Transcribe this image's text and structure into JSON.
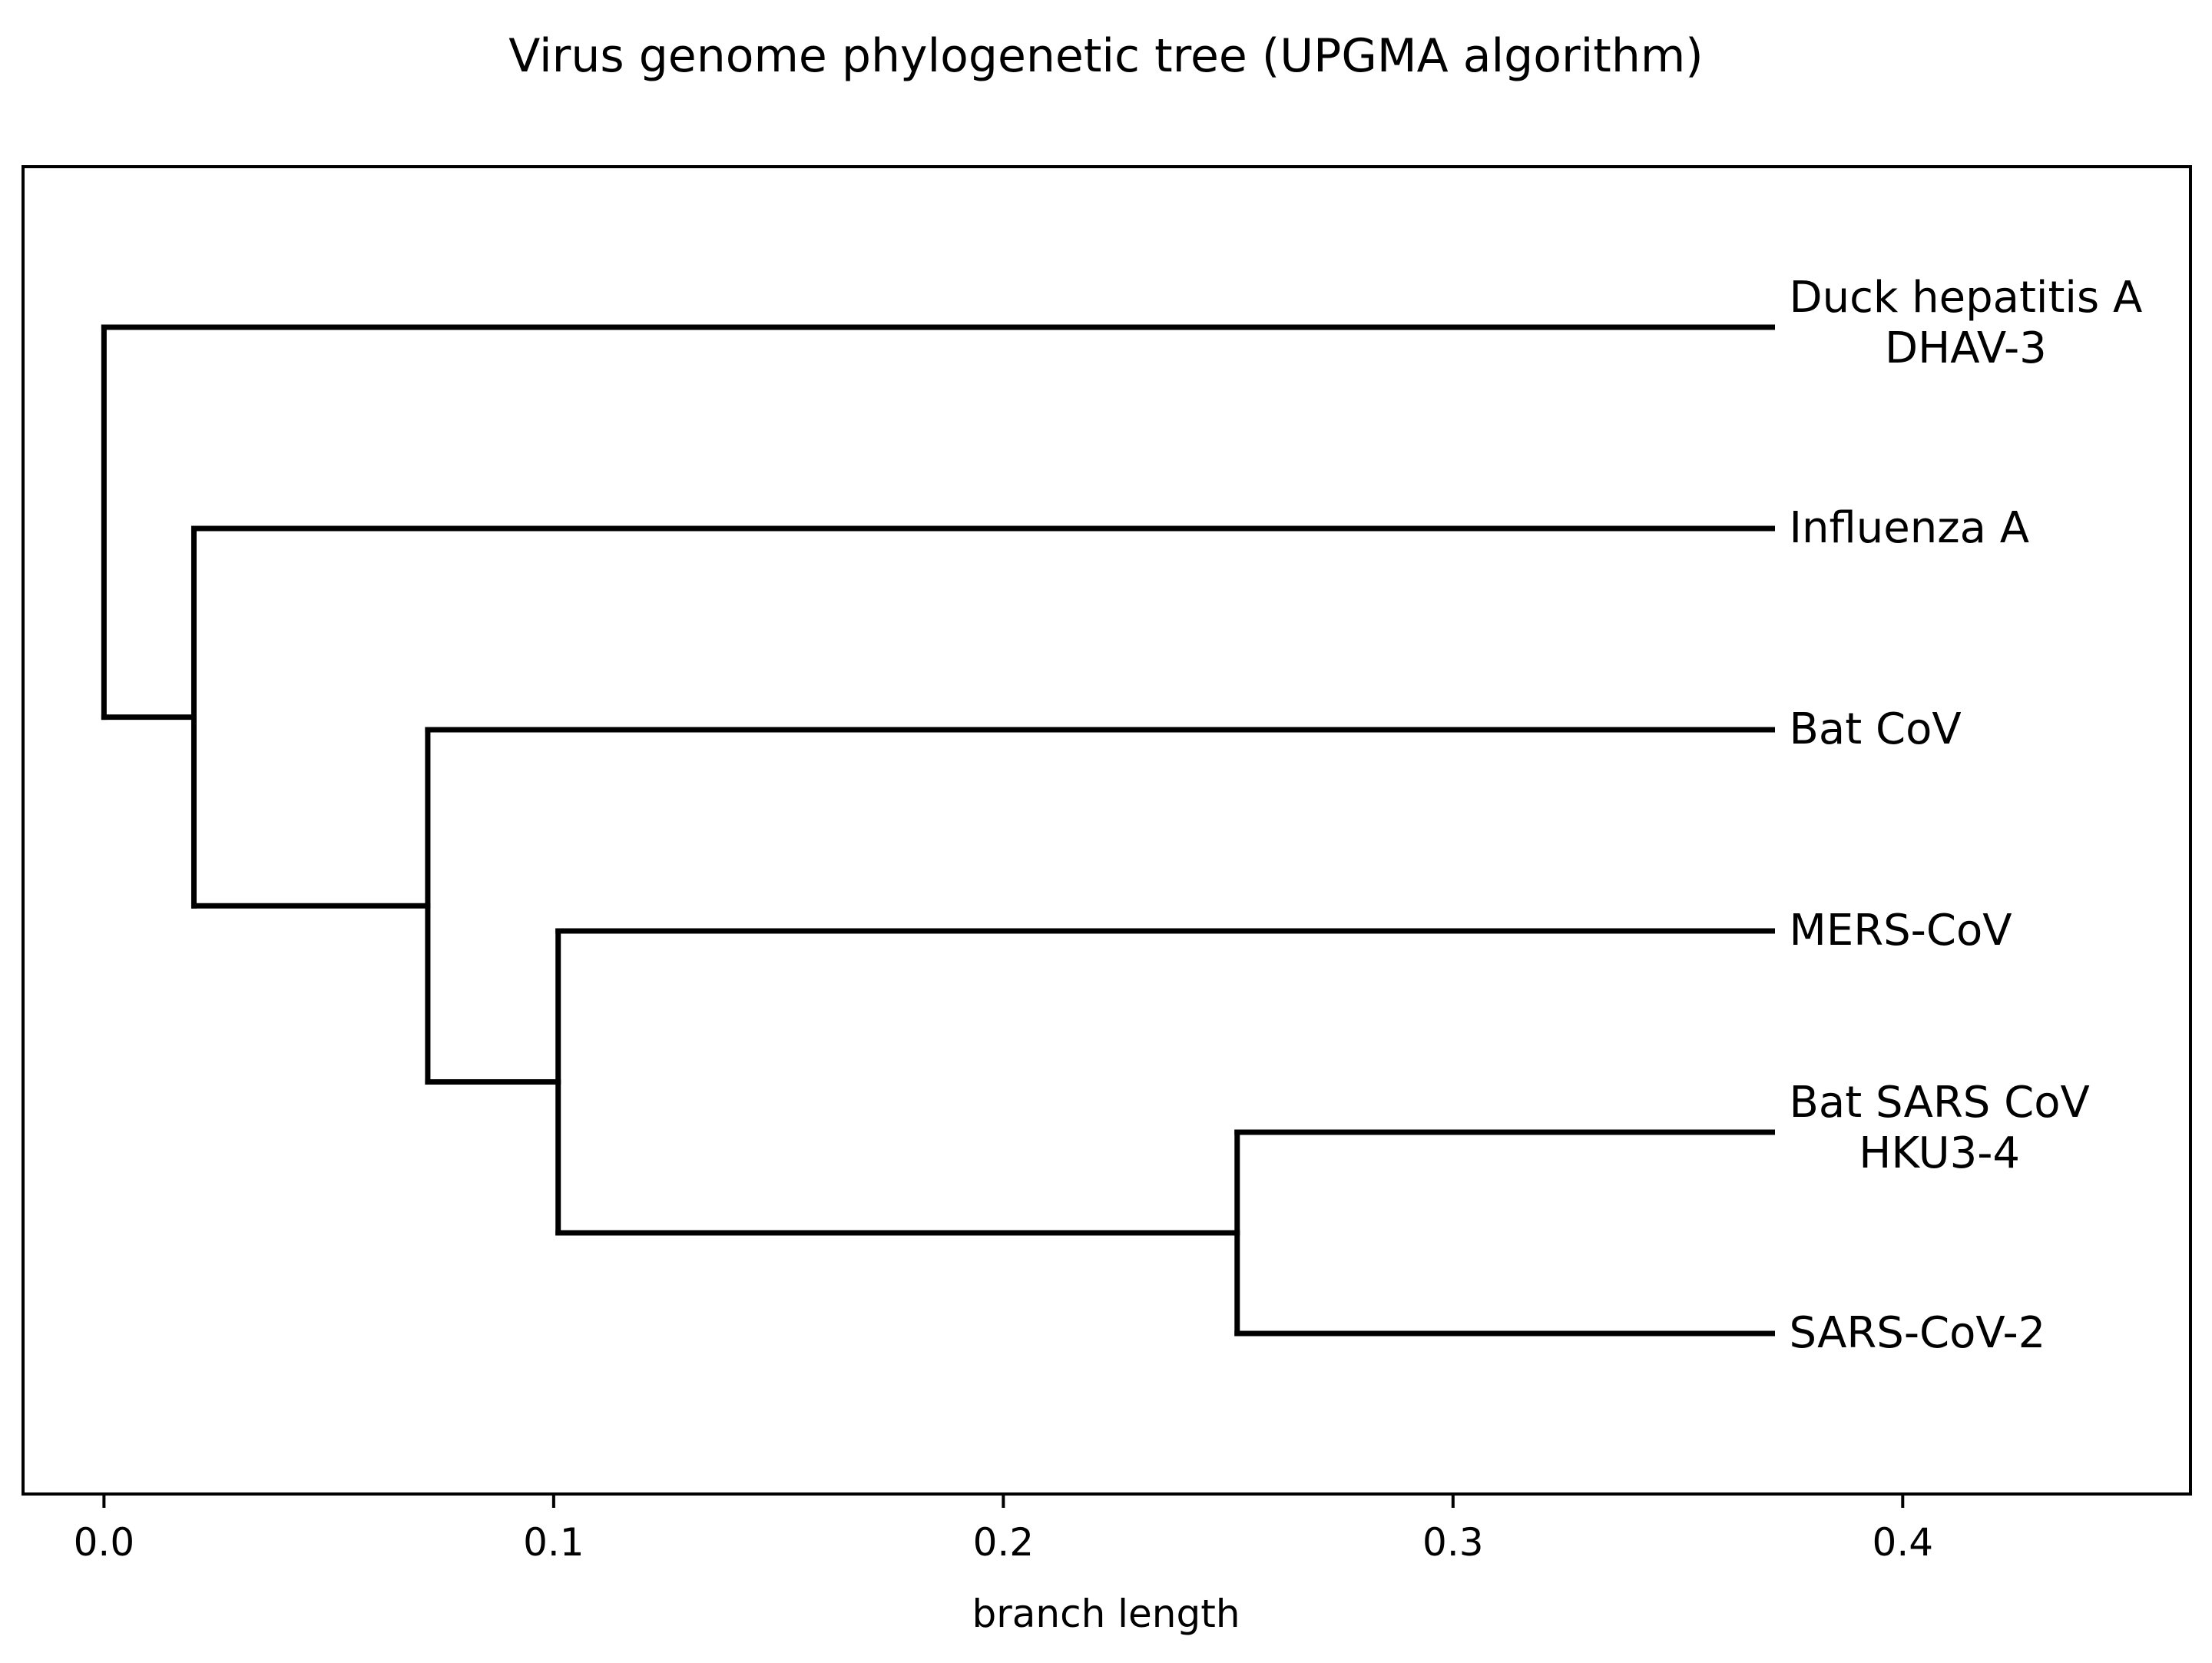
{
  "chart_data": {
    "type": "dendrogram",
    "title": "Virus genome phylogenetic tree (UPGMA algorithm)",
    "xlabel": "branch length",
    "xlim": [
      -0.018,
      0.464
    ],
    "xticks": [
      "0.0",
      "0.1",
      "0.2",
      "0.3",
      "0.4"
    ],
    "xtick_values": [
      0.0,
      0.1,
      0.2,
      0.3,
      0.4
    ],
    "tip_x": 0.371,
    "leaves": [
      {
        "label_lines": [
          "Duck hepatitis A",
          "DHAV-3"
        ],
        "row": 0
      },
      {
        "label_lines": [
          "Influenza A"
        ],
        "row": 1
      },
      {
        "label_lines": [
          "Bat CoV"
        ],
        "row": 2
      },
      {
        "label_lines": [
          "MERS-CoV"
        ],
        "row": 3
      },
      {
        "label_lines": [
          "Bat SARS CoV",
          "HKU3-4"
        ],
        "row": 4
      },
      {
        "label_lines": [
          "SARS-CoV-2"
        ],
        "row": 5
      }
    ],
    "clades": [
      {
        "x": 0.252,
        "children": [
          4,
          5
        ]
      },
      {
        "x": 0.101,
        "children": [
          3,
          "c0"
        ]
      },
      {
        "x": 0.072,
        "children": [
          2,
          "c1"
        ]
      },
      {
        "x": 0.02,
        "children": [
          1,
          "c2"
        ]
      },
      {
        "x": 0.0,
        "children": [
          0,
          "c3"
        ]
      }
    ],
    "color": "#000000"
  }
}
